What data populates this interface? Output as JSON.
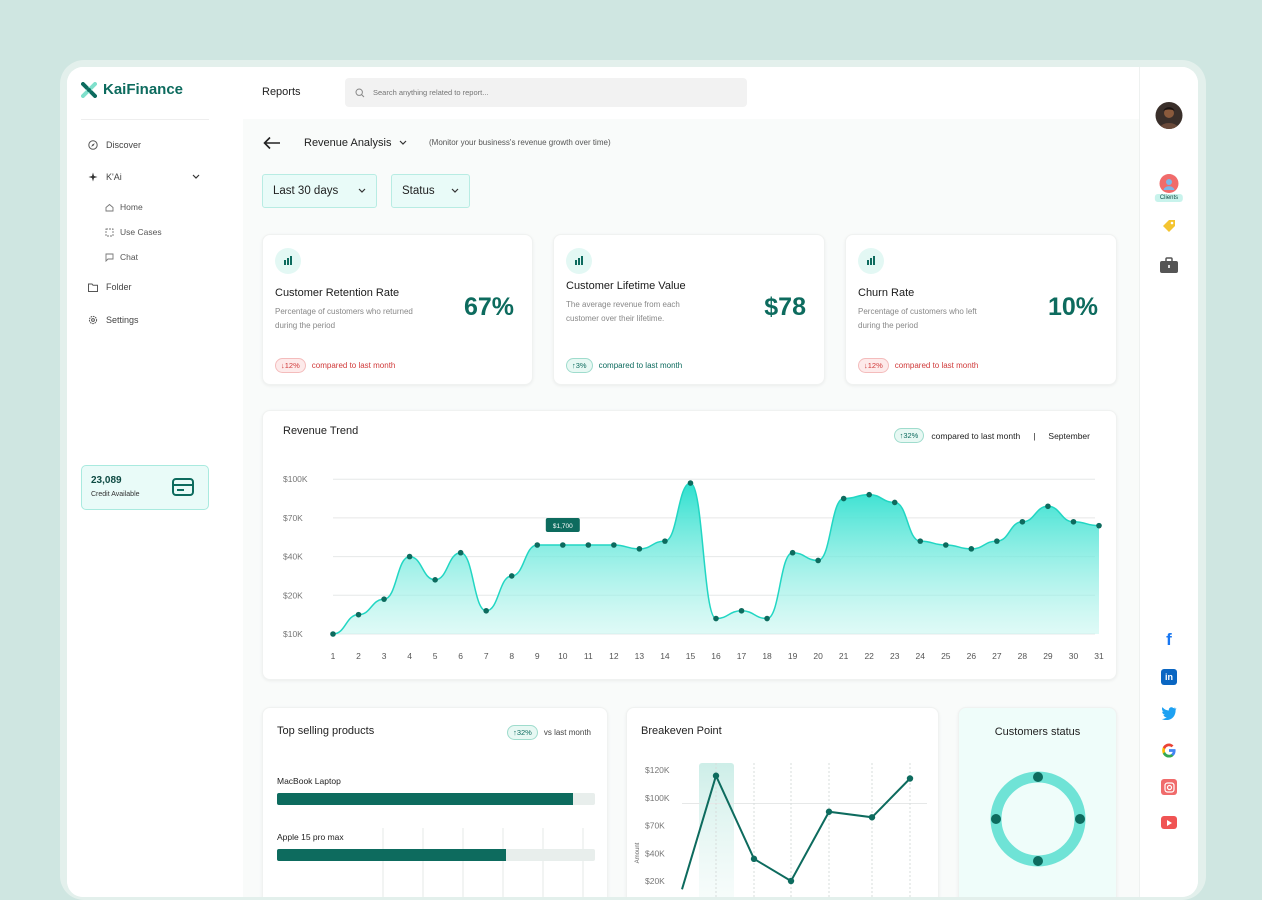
{
  "app": {
    "brand": "KaiFinance",
    "page_title": "Reports"
  },
  "search": {
    "placeholder": "Search anything related to report..."
  },
  "sidebar": {
    "discover": "Discover",
    "kai": "K'Ai",
    "sub": [
      "Home",
      "Use Cases",
      "Chat"
    ],
    "folder": "Folder",
    "settings": "Settings",
    "credit_value": "23,089",
    "credit_label": "Credit Available"
  },
  "analysis": {
    "title": "Revenue Analysis",
    "subtitle": "(Monitor your business's revenue growth over time)",
    "filter_period": "Last 30 days",
    "filter_status": "Status"
  },
  "metrics": [
    {
      "title": "Customer Retention Rate",
      "desc": "Percentage of customers who returned during the period",
      "value": "67%",
      "change": "12%",
      "direction": "down",
      "compare": "compared to last month"
    },
    {
      "title": "Customer Lifetime Value",
      "desc": "The average revenue from each customer over their lifetime.",
      "value": "$78",
      "change": "3%",
      "direction": "up",
      "compare": "compared to last month"
    },
    {
      "title": "Churn Rate",
      "desc": "Percentage of customers who left during the period",
      "value": "10%",
      "change": "12%",
      "direction": "down",
      "compare": "compared to last month"
    }
  ],
  "trend": {
    "title": "Revenue Trend",
    "change": "32%",
    "compare": "compared to last month",
    "month": "September",
    "tooltip": "$1,700"
  },
  "products": {
    "title": "Top selling products",
    "change": "32%",
    "compare": "vs last month",
    "items": [
      {
        "name": "MacBook Laptop",
        "share": 0.93
      },
      {
        "name": "Apple 15 pro max",
        "share": 0.72
      }
    ]
  },
  "breakeven": {
    "title": "Breakeven Point",
    "ylabel": "Amount"
  },
  "customers": {
    "title": "Customers status"
  },
  "rail": {
    "clients_label": "Clients"
  },
  "colors": {
    "accent": "#0d6b5e",
    "area": "#2ee0cf",
    "red": "#d03a3a"
  },
  "chart_data": [
    {
      "type": "area",
      "title": "Revenue Trend",
      "ylabel": "",
      "yticks": [
        "$10K",
        "$20K",
        "$40K",
        "$70K",
        "$100K"
      ],
      "x": [
        1,
        2,
        3,
        4,
        5,
        6,
        7,
        8,
        9,
        10,
        11,
        12,
        13,
        14,
        15,
        16,
        17,
        18,
        19,
        20,
        21,
        22,
        23,
        24,
        25,
        26,
        27,
        28,
        29,
        30,
        31
      ],
      "values_level": [
        0.0,
        0.5,
        0.9,
        2.0,
        1.4,
        2.1,
        0.6,
        1.5,
        2.3,
        2.3,
        2.3,
        2.3,
        2.2,
        2.4,
        3.9,
        0.4,
        0.6,
        0.4,
        2.1,
        1.9,
        3.5,
        3.6,
        3.4,
        2.4,
        2.3,
        2.2,
        2.4,
        2.9,
        3.3,
        2.9,
        2.8
      ],
      "note": "values_level are on the chart's tick scale: 0=$10K, 1=$20K, 2=$40K, 3=$70K, 4=$100K",
      "highlight": {
        "x": 10,
        "label": "$1,700"
      }
    },
    {
      "type": "line",
      "title": "Breakeven Point",
      "ylabel": "Amount",
      "yticks": [
        "$20K",
        "$40K",
        "$70K",
        "$100K",
        "$120K"
      ],
      "values_level": [
        -0.3,
        3.8,
        0.8,
        0.0,
        2.5,
        2.3,
        3.7
      ]
    },
    {
      "type": "pie",
      "title": "Customers status",
      "series": [
        {
          "name": "segments",
          "values": [
            25,
            25,
            25,
            25
          ]
        }
      ]
    }
  ]
}
